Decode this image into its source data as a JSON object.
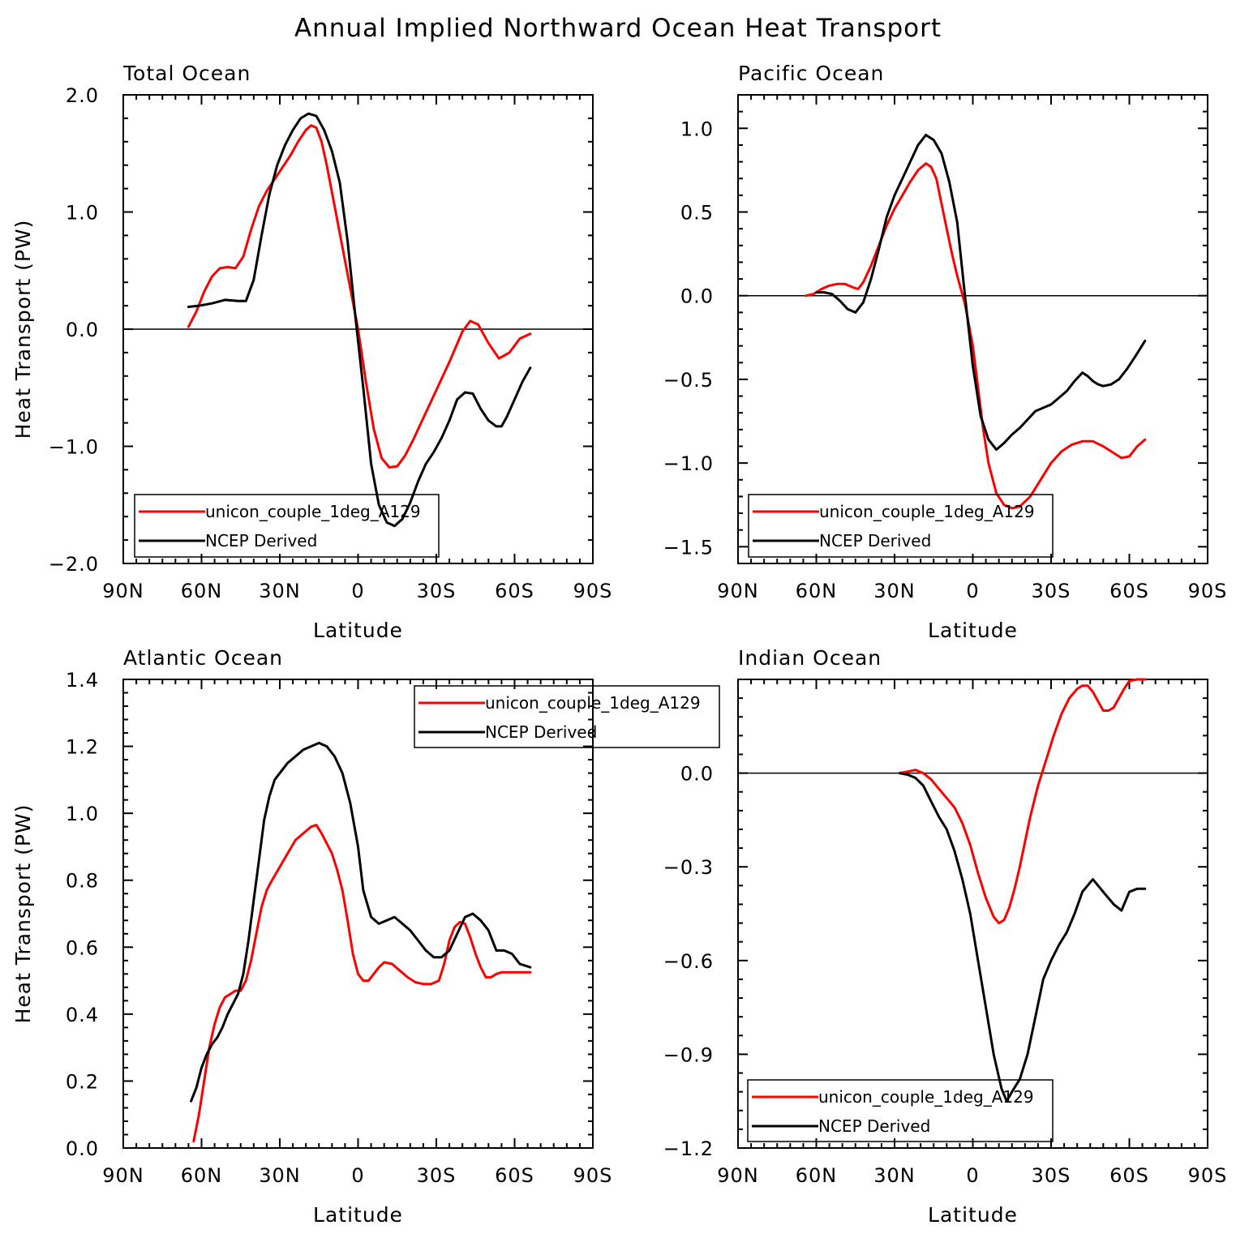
{
  "figure": {
    "title": "Annual Implied Northward Ocean Heat Transport"
  },
  "colors": {
    "model": "#ff0000",
    "obs": "#000000",
    "axes": "#000000"
  },
  "chart_data": [
    {
      "type": "line",
      "title": "Total Ocean",
      "xlabel": "Latitude",
      "ylabel": "Heat Transport (PW)",
      "xlim": [
        90,
        -90
      ],
      "ylim": [
        -2.0,
        2.0
      ],
      "x_ticks": [
        90,
        60,
        30,
        0,
        -30,
        -60,
        -90
      ],
      "x_tick_labels": [
        "90N",
        "60N",
        "30N",
        "0",
        "30S",
        "60S",
        "90S"
      ],
      "y_ticks": [
        -2.0,
        -1.0,
        0.0,
        1.0,
        2.0
      ],
      "y_tick_labels": [
        "−2.0",
        "−1.0",
        "0.0",
        "1.0",
        "2.0"
      ],
      "zero_line": true,
      "legend_position": "bottom-left",
      "series": [
        {
          "name": "unicon_couple_1deg_A129",
          "color": "#ff0000",
          "x": [
            65,
            62,
            59,
            56,
            53,
            50,
            47,
            44,
            41,
            38,
            35,
            32,
            29,
            26,
            23,
            20,
            18,
            16,
            14,
            12,
            9,
            6,
            3,
            0,
            -3,
            -6,
            -9,
            -12,
            -15,
            -18,
            -21,
            -25,
            -30,
            -35,
            -40,
            -43,
            -46,
            -50,
            -54,
            -58,
            -62,
            -66
          ],
          "y": [
            0.02,
            0.15,
            0.32,
            0.45,
            0.52,
            0.53,
            0.52,
            0.62,
            0.85,
            1.05,
            1.18,
            1.28,
            1.38,
            1.48,
            1.6,
            1.7,
            1.74,
            1.72,
            1.6,
            1.4,
            1.05,
            0.7,
            0.35,
            0.0,
            -0.45,
            -0.85,
            -1.1,
            -1.18,
            -1.17,
            -1.08,
            -0.95,
            -0.76,
            -0.52,
            -0.28,
            -0.02,
            0.07,
            0.04,
            -0.12,
            -0.25,
            -0.2,
            -0.08,
            -0.04
          ]
        },
        {
          "name": "NCEP Derived",
          "color": "#000000",
          "x": [
            65,
            61,
            56,
            51,
            46,
            43,
            40,
            37,
            34,
            31,
            28,
            25,
            22,
            19,
            16,
            13,
            10,
            7,
            4,
            1,
            -2,
            -5,
            -8,
            -11,
            -14,
            -17,
            -20,
            -23,
            -26,
            -29,
            -32,
            -35,
            -38,
            -41,
            -44,
            -47,
            -50,
            -53,
            -55,
            -57,
            -60,
            -63,
            -66
          ],
          "y": [
            0.19,
            0.2,
            0.22,
            0.25,
            0.24,
            0.24,
            0.42,
            0.8,
            1.15,
            1.4,
            1.57,
            1.7,
            1.8,
            1.84,
            1.82,
            1.7,
            1.52,
            1.25,
            0.75,
            0.1,
            -0.5,
            -1.15,
            -1.5,
            -1.65,
            -1.68,
            -1.62,
            -1.48,
            -1.3,
            -1.15,
            -1.05,
            -0.93,
            -0.78,
            -0.6,
            -0.54,
            -0.55,
            -0.68,
            -0.78,
            -0.83,
            -0.83,
            -0.75,
            -0.6,
            -0.45,
            -0.33
          ]
        }
      ]
    },
    {
      "type": "line",
      "title": "Pacific Ocean",
      "xlabel": "Latitude",
      "ylabel": "",
      "xlim": [
        90,
        -90
      ],
      "ylim": [
        -1.6,
        1.2
      ],
      "x_ticks": [
        90,
        60,
        30,
        0,
        -30,
        -60,
        -90
      ],
      "x_tick_labels": [
        "90N",
        "60N",
        "30N",
        "0",
        "30S",
        "60S",
        "90S"
      ],
      "y_ticks": [
        -1.5,
        -1.0,
        -0.5,
        0.0,
        0.5,
        1.0
      ],
      "y_tick_labels": [
        "−1.5",
        "−1.0",
        "−0.5",
        "0.0",
        "0.5",
        "1.0"
      ],
      "zero_line": true,
      "legend_position": "bottom-left",
      "series": [
        {
          "name": "unicon_couple_1deg_A129",
          "color": "#ff0000",
          "x": [
            64,
            61,
            58,
            55,
            52,
            49,
            46,
            44,
            42,
            39,
            36,
            33,
            30,
            27,
            24,
            21,
            18,
            16,
            14,
            12,
            10,
            8,
            6,
            3,
            0,
            -2,
            -4,
            -6,
            -9,
            -12,
            -15,
            -18,
            -22,
            -26,
            -30,
            -34,
            -38,
            -42,
            -46,
            -50,
            -54,
            -57,
            -60,
            -63,
            -66
          ],
          "y": [
            0.0,
            0.01,
            0.04,
            0.06,
            0.07,
            0.07,
            0.05,
            0.04,
            0.08,
            0.18,
            0.3,
            0.42,
            0.52,
            0.6,
            0.68,
            0.75,
            0.79,
            0.77,
            0.7,
            0.55,
            0.4,
            0.25,
            0.12,
            -0.05,
            -0.3,
            -0.55,
            -0.8,
            -1.0,
            -1.18,
            -1.25,
            -1.27,
            -1.26,
            -1.2,
            -1.1,
            -1.0,
            -0.93,
            -0.89,
            -0.87,
            -0.87,
            -0.9,
            -0.94,
            -0.97,
            -0.96,
            -0.9,
            -0.86
          ]
        },
        {
          "name": "NCEP Derived",
          "color": "#000000",
          "x": [
            60,
            57,
            54,
            51,
            48,
            45,
            42,
            39,
            36,
            33,
            30,
            27,
            24,
            21,
            18,
            15,
            12,
            9,
            6,
            3,
            0,
            -3,
            -6,
            -9,
            -12,
            -15,
            -18,
            -21,
            -24,
            -27,
            -30,
            -33,
            -36,
            -39,
            -42,
            -44,
            -46,
            -48,
            -50,
            -53,
            -56,
            -59,
            -62,
            -66
          ],
          "y": [
            0.02,
            0.02,
            0.01,
            -0.03,
            -0.08,
            -0.1,
            -0.04,
            0.1,
            0.28,
            0.47,
            0.6,
            0.7,
            0.8,
            0.9,
            0.96,
            0.93,
            0.85,
            0.68,
            0.44,
            0.0,
            -0.42,
            -0.72,
            -0.86,
            -0.92,
            -0.88,
            -0.83,
            -0.79,
            -0.74,
            -0.69,
            -0.67,
            -0.65,
            -0.61,
            -0.57,
            -0.51,
            -0.46,
            -0.48,
            -0.51,
            -0.53,
            -0.54,
            -0.53,
            -0.5,
            -0.44,
            -0.37,
            -0.27
          ]
        }
      ]
    },
    {
      "type": "line",
      "title": "Atlantic Ocean",
      "xlabel": "Latitude",
      "ylabel": "Heat Transport (PW)",
      "xlim": [
        90,
        -90
      ],
      "ylim": [
        0.0,
        1.4
      ],
      "x_ticks": [
        90,
        60,
        30,
        0,
        -30,
        -60,
        -90
      ],
      "x_tick_labels": [
        "90N",
        "60N",
        "30N",
        "0",
        "30S",
        "60S",
        "90S"
      ],
      "y_ticks": [
        0.0,
        0.2,
        0.4,
        0.6,
        0.8,
        1.0,
        1.2,
        1.4
      ],
      "y_tick_labels": [
        "0.0",
        "0.2",
        "0.4",
        "0.6",
        "0.8",
        "1.0",
        "1.2",
        "1.4"
      ],
      "zero_line": false,
      "legend_position": "top-right",
      "series": [
        {
          "name": "unicon_couple_1deg_A129",
          "color": "#ff0000",
          "x": [
            63,
            61,
            59,
            57,
            55,
            53,
            51,
            49,
            47,
            45,
            43,
            41,
            39,
            37,
            35,
            33,
            30,
            27,
            24,
            21,
            18,
            16,
            14,
            12,
            10,
            8,
            6,
            4,
            2,
            0,
            -2,
            -4,
            -6,
            -8,
            -10,
            -13,
            -16,
            -19,
            -22,
            -25,
            -28,
            -31,
            -33,
            -35,
            -37,
            -39,
            -41,
            -43,
            -45,
            -47,
            -49,
            -51,
            -53,
            -55,
            -57,
            -60,
            -63,
            -66
          ],
          "y": [
            0.02,
            0.1,
            0.2,
            0.3,
            0.37,
            0.42,
            0.45,
            0.46,
            0.47,
            0.47,
            0.5,
            0.56,
            0.64,
            0.72,
            0.77,
            0.8,
            0.84,
            0.88,
            0.92,
            0.94,
            0.96,
            0.965,
            0.94,
            0.91,
            0.88,
            0.83,
            0.77,
            0.68,
            0.58,
            0.52,
            0.5,
            0.5,
            0.52,
            0.54,
            0.555,
            0.55,
            0.53,
            0.51,
            0.495,
            0.49,
            0.49,
            0.5,
            0.55,
            0.62,
            0.66,
            0.675,
            0.67,
            0.63,
            0.58,
            0.54,
            0.51,
            0.51,
            0.52,
            0.525,
            0.525,
            0.525,
            0.525,
            0.525
          ]
        },
        {
          "name": "NCEP Derived",
          "color": "#000000",
          "x": [
            64,
            62,
            60,
            58,
            56,
            54,
            52,
            50,
            48,
            46,
            44,
            42,
            40,
            38,
            36,
            34,
            32,
            30,
            27,
            24,
            21,
            18,
            15,
            12,
            9,
            6,
            3,
            0,
            -2,
            -5,
            -8,
            -11,
            -14,
            -17,
            -20,
            -23,
            -26,
            -29,
            -32,
            -35,
            -38,
            -41,
            -44,
            -47,
            -50,
            -53,
            -56,
            -59,
            -62,
            -66
          ],
          "y": [
            0.14,
            0.18,
            0.24,
            0.28,
            0.31,
            0.33,
            0.36,
            0.4,
            0.43,
            0.46,
            0.52,
            0.62,
            0.74,
            0.86,
            0.98,
            1.05,
            1.1,
            1.12,
            1.15,
            1.17,
            1.19,
            1.2,
            1.21,
            1.2,
            1.17,
            1.12,
            1.03,
            0.9,
            0.77,
            0.69,
            0.67,
            0.68,
            0.69,
            0.67,
            0.65,
            0.62,
            0.59,
            0.57,
            0.57,
            0.59,
            0.64,
            0.69,
            0.7,
            0.68,
            0.65,
            0.59,
            0.59,
            0.58,
            0.55,
            0.54
          ]
        }
      ]
    },
    {
      "type": "line",
      "title": "Indian Ocean",
      "xlabel": "Latitude",
      "ylabel": "",
      "xlim": [
        90,
        -90
      ],
      "ylim": [
        -1.2,
        0.3
      ],
      "x_ticks": [
        90,
        60,
        30,
        0,
        -30,
        -60,
        -90
      ],
      "x_tick_labels": [
        "90N",
        "60N",
        "30N",
        "0",
        "30S",
        "60S",
        "90S"
      ],
      "y_ticks": [
        -1.2,
        -0.9,
        -0.6,
        -0.3,
        0.0
      ],
      "y_tick_labels": [
        "−1.2",
        "−0.9",
        "−0.6",
        "−0.3",
        "0.0"
      ],
      "zero_line": true,
      "legend_position": "bottom-left",
      "series": [
        {
          "name": "unicon_couple_1deg_A129",
          "color": "#ff0000",
          "x": [
            28,
            25,
            22,
            19,
            16,
            13,
            10,
            7,
            4,
            1,
            -2,
            -5,
            -8,
            -10,
            -12,
            -14,
            -16,
            -18,
            -20,
            -22,
            -25,
            -28,
            -31,
            -34,
            -37,
            -40,
            -42,
            -44,
            -46,
            -48,
            -50,
            -52,
            -54,
            -56,
            -58,
            -60,
            -63,
            -66
          ],
          "y": [
            0.0,
            0.005,
            0.01,
            0.0,
            -0.02,
            -0.05,
            -0.08,
            -0.11,
            -0.16,
            -0.23,
            -0.32,
            -0.4,
            -0.46,
            -0.48,
            -0.47,
            -0.43,
            -0.37,
            -0.3,
            -0.22,
            -0.14,
            -0.04,
            0.04,
            0.12,
            0.19,
            0.24,
            0.27,
            0.28,
            0.28,
            0.26,
            0.23,
            0.2,
            0.2,
            0.21,
            0.24,
            0.27,
            0.295,
            0.3,
            0.3
          ]
        },
        {
          "name": "NCEP Derived",
          "color": "#000000",
          "x": [
            28,
            25,
            22,
            19,
            16,
            13,
            10,
            7,
            4,
            1,
            -2,
            -5,
            -8,
            -11,
            -13,
            -15,
            -18,
            -21,
            -24,
            -27,
            -30,
            -33,
            -36,
            -39,
            -42,
            -44,
            -46,
            -48,
            -51,
            -54,
            -57,
            -60,
            -63,
            -66
          ],
          "y": [
            0.0,
            -0.005,
            -0.015,
            -0.04,
            -0.09,
            -0.14,
            -0.18,
            -0.25,
            -0.34,
            -0.45,
            -0.6,
            -0.75,
            -0.9,
            -1.01,
            -1.05,
            -1.02,
            -0.98,
            -0.9,
            -0.78,
            -0.66,
            -0.6,
            -0.55,
            -0.51,
            -0.45,
            -0.38,
            -0.36,
            -0.34,
            -0.36,
            -0.39,
            -0.42,
            -0.44,
            -0.38,
            -0.37,
            -0.37
          ]
        }
      ]
    }
  ]
}
